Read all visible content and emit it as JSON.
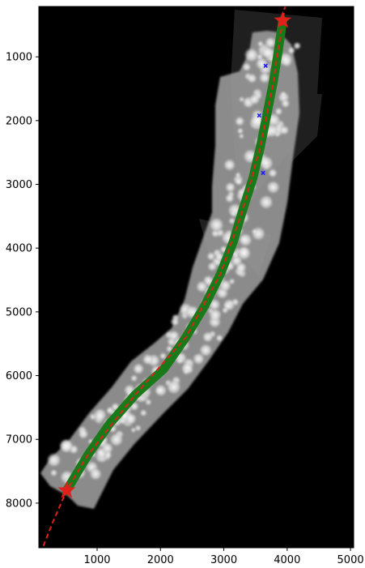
{
  "chart_data": {
    "type": "scatter",
    "title": "",
    "xlabel": "",
    "ylabel": "",
    "xlim": [
      80,
      5050
    ],
    "ylim": [
      8700,
      210
    ],
    "x_ticks": [
      1000,
      2000,
      3000,
      4000,
      5000
    ],
    "y_ticks": [
      1000,
      2000,
      3000,
      4000,
      5000,
      6000,
      7000,
      8000
    ],
    "x_tick_labels": [
      "1000",
      "2000",
      "3000",
      "4000",
      "5000"
    ],
    "y_tick_labels": [
      "1000",
      "2000",
      "3000",
      "4000",
      "5000",
      "6000",
      "7000",
      "8000"
    ],
    "background": "grayscale microscopy image of an elongated specimen on black",
    "series": [
      {
        "kind": "centerline",
        "color": "#1a7a1a",
        "points": [
          [
            3930,
            430
          ],
          [
            3860,
            900
          ],
          [
            3780,
            1400
          ],
          [
            3680,
            1900
          ],
          [
            3580,
            2400
          ],
          [
            3460,
            2900
          ],
          [
            3300,
            3400
          ],
          [
            3150,
            3900
          ],
          [
            2950,
            4400
          ],
          [
            2700,
            4900
          ],
          [
            2400,
            5400
          ],
          [
            2050,
            5900
          ],
          [
            1600,
            6300
          ],
          [
            1200,
            6750
          ],
          [
            850,
            7250
          ],
          [
            520,
            7800
          ]
        ]
      },
      {
        "kind": "dashed-fit",
        "color": "#e0201a",
        "points": [
          [
            3990,
            60
          ],
          [
            3930,
            430
          ],
          [
            3780,
            1400
          ],
          [
            3580,
            2400
          ],
          [
            3300,
            3400
          ],
          [
            2950,
            4400
          ],
          [
            2400,
            5400
          ],
          [
            1600,
            6300
          ],
          [
            850,
            7250
          ],
          [
            520,
            7800
          ],
          [
            300,
            8300
          ],
          [
            140,
            8700
          ]
        ]
      },
      {
        "kind": "endpoints",
        "marker": "star",
        "color": "#e0201a",
        "points": [
          [
            3930,
            430
          ],
          [
            520,
            7800
          ]
        ]
      },
      {
        "kind": "markers",
        "marker": "x",
        "color": "#1a1aff",
        "points": [
          [
            3660,
            1140
          ],
          [
            3560,
            1920
          ],
          [
            3620,
            2820
          ]
        ]
      }
    ]
  }
}
